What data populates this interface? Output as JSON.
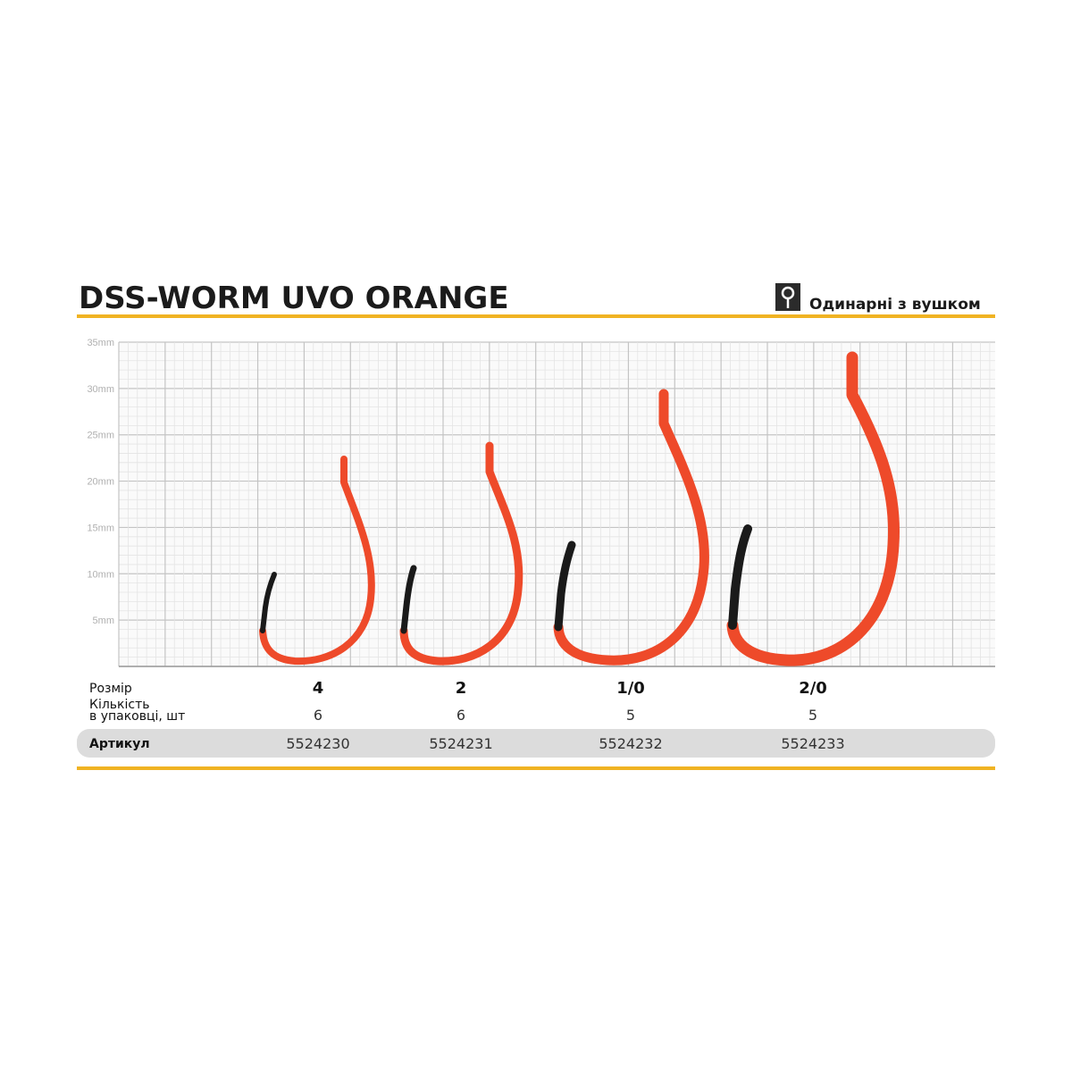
{
  "header": {
    "title": "DSS-WORM UVO ORANGE",
    "badge": "Одинарні з вушком"
  },
  "grid": {
    "labels": [
      "35mm",
      "30mm",
      "25mm",
      "20mm",
      "15mm",
      "10mm",
      "5mm"
    ]
  },
  "table": {
    "rows": [
      {
        "label": "Розмір",
        "cells": [
          "4",
          "2",
          "1/0",
          "2/0"
        ]
      },
      {
        "label": [
          "Кількість",
          "в упаковці, шт"
        ],
        "cells": [
          6,
          6,
          5,
          5
        ]
      },
      {
        "label": "Артикул",
        "cells": [
          "5524230",
          "5524231",
          "5524232",
          "5524233"
        ]
      }
    ]
  }
}
